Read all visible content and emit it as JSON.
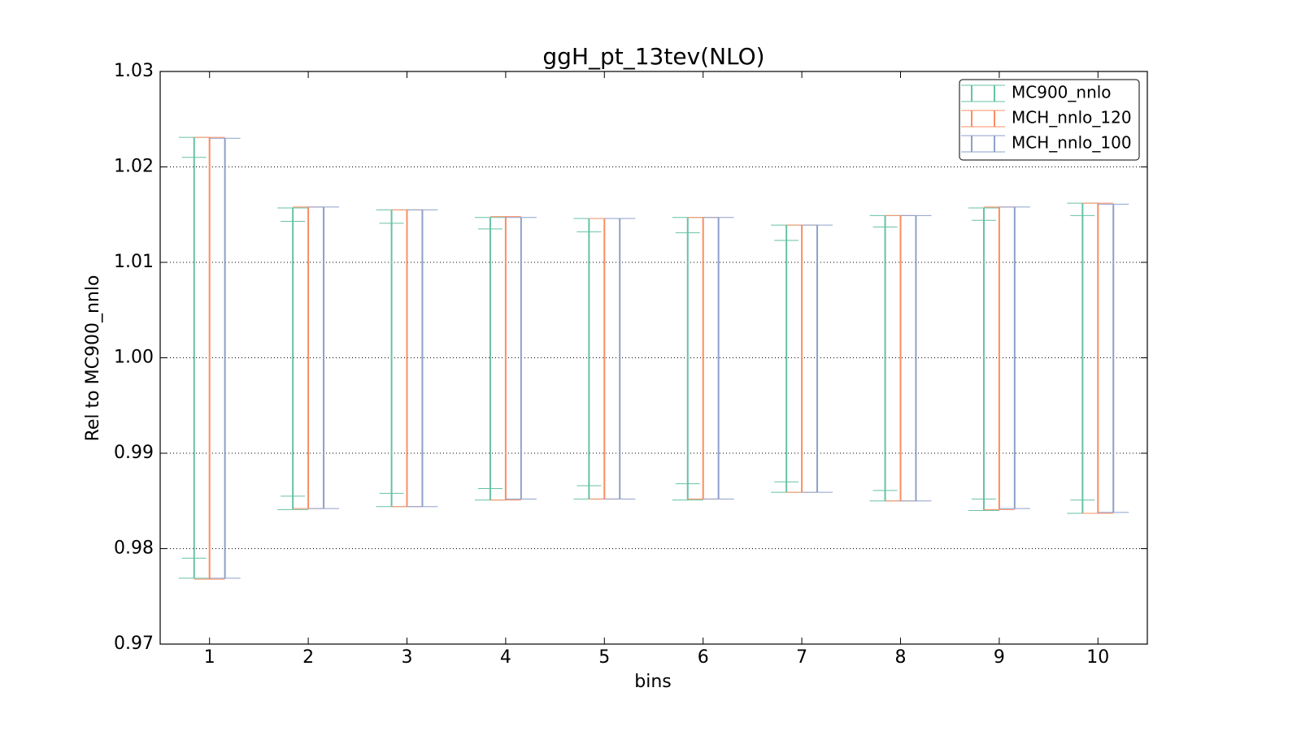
{
  "chart_data": {
    "type": "errorbar",
    "title": "ggH_pt_13tev(NLO)",
    "xlabel": "bins",
    "ylabel": "Rel to MC900_nnlo",
    "categories": [
      "1",
      "2",
      "3",
      "4",
      "5",
      "6",
      "7",
      "8",
      "9",
      "10"
    ],
    "xlim": [
      0.5,
      10.5
    ],
    "ylim": [
      0.97,
      1.03
    ],
    "yticks": [
      0.97,
      0.98,
      0.99,
      {
        "value": 1,
        "label": "1.00"
      },
      1.01,
      1.02,
      1.03
    ],
    "grid": true,
    "legend": "upper right",
    "series": [
      {
        "name": "MC900_nnlo",
        "color": "#66c2a5",
        "high": [
          1.0231,
          1.0157,
          1.0155,
          1.0147,
          1.0146,
          1.0147,
          1.0139,
          1.0149,
          1.0157,
          1.0162
        ],
        "low": [
          0.9769,
          0.9841,
          0.9844,
          0.9851,
          0.9852,
          0.9851,
          0.9859,
          0.985,
          0.984,
          0.9837
        ],
        "inner_high": [
          1.021,
          1.0143,
          1.0141,
          1.0135,
          1.0132,
          1.0131,
          1.0123,
          1.0137,
          1.0144,
          1.0149
        ],
        "inner_low": [
          0.979,
          0.9855,
          0.9858,
          0.9863,
          0.9866,
          0.9868,
          0.987,
          0.9861,
          0.9852,
          0.9851
        ]
      },
      {
        "name": "MCH_nnlo_120",
        "color": "#fc8d62",
        "high": [
          1.0231,
          1.0158,
          1.0155,
          1.0148,
          1.0146,
          1.0147,
          1.0139,
          1.0149,
          1.0158,
          1.0162
        ],
        "low": [
          0.9768,
          0.9842,
          0.9844,
          0.9851,
          0.9852,
          0.9852,
          0.9859,
          0.985,
          0.9841,
          0.9837
        ]
      },
      {
        "name": "MCH_nnlo_100",
        "color": "#8da0cb",
        "high": [
          1.023,
          1.0158,
          1.0155,
          1.0147,
          1.0146,
          1.0147,
          1.0139,
          1.0149,
          1.0158,
          1.0161
        ],
        "low": [
          0.9769,
          0.9842,
          0.9844,
          0.9852,
          0.9852,
          0.9852,
          0.9859,
          0.985,
          0.9842,
          0.9838
        ]
      }
    ]
  }
}
